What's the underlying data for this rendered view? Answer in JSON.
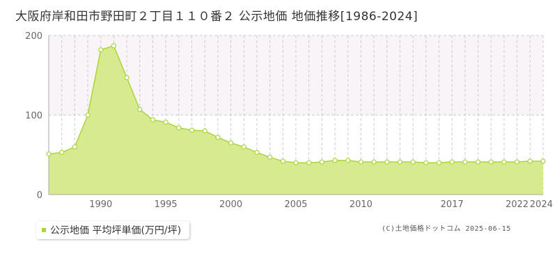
{
  "title": "大阪府岸和田市野田町２丁目１１０番２ 公示地価 地価推移[1986-2024]",
  "legend": {
    "label": "公示地価 平均坪単価(万円/坪)"
  },
  "credit": "(C)土地価格ドットコム 2025-06-15",
  "colors": {
    "area": "#d8ea90",
    "line": "#a9d53a",
    "band": "#f8f4f8",
    "grid": "#cccccc",
    "point_fill": "#ffffff"
  },
  "chart_data": {
    "type": "area",
    "title": "",
    "xlabel": "",
    "ylabel": "",
    "xlim": [
      1986,
      2024
    ],
    "ylim": [
      0,
      200
    ],
    "yticks": [
      "0",
      "100",
      "200"
    ],
    "xticks": [
      "1990",
      "1995",
      "2000",
      "2005",
      "2010",
      "2017",
      "2022",
      "2024"
    ],
    "grid": true,
    "legend_position": "bottom-left",
    "series": [
      {
        "name": "公示地価 平均坪単価(万円/坪)",
        "x": [
          1986,
          1987,
          1988,
          1989,
          1990,
          1991,
          1992,
          1993,
          1994,
          1995,
          1996,
          1997,
          1998,
          1999,
          2000,
          2001,
          2002,
          2003,
          2004,
          2005,
          2006,
          2007,
          2008,
          2009,
          2010,
          2011,
          2012,
          2013,
          2014,
          2015,
          2016,
          2017,
          2018,
          2019,
          2020,
          2021,
          2022,
          2023,
          2024
        ],
        "values": [
          51,
          53,
          60,
          100,
          182,
          187,
          147,
          107,
          94,
          91,
          84,
          81,
          80,
          72,
          65,
          60,
          53,
          47,
          42,
          40,
          40,
          41,
          43,
          43,
          41,
          41,
          41,
          41,
          41,
          40,
          40,
          41,
          41,
          41,
          41,
          41,
          41,
          42,
          42
        ]
      }
    ]
  }
}
